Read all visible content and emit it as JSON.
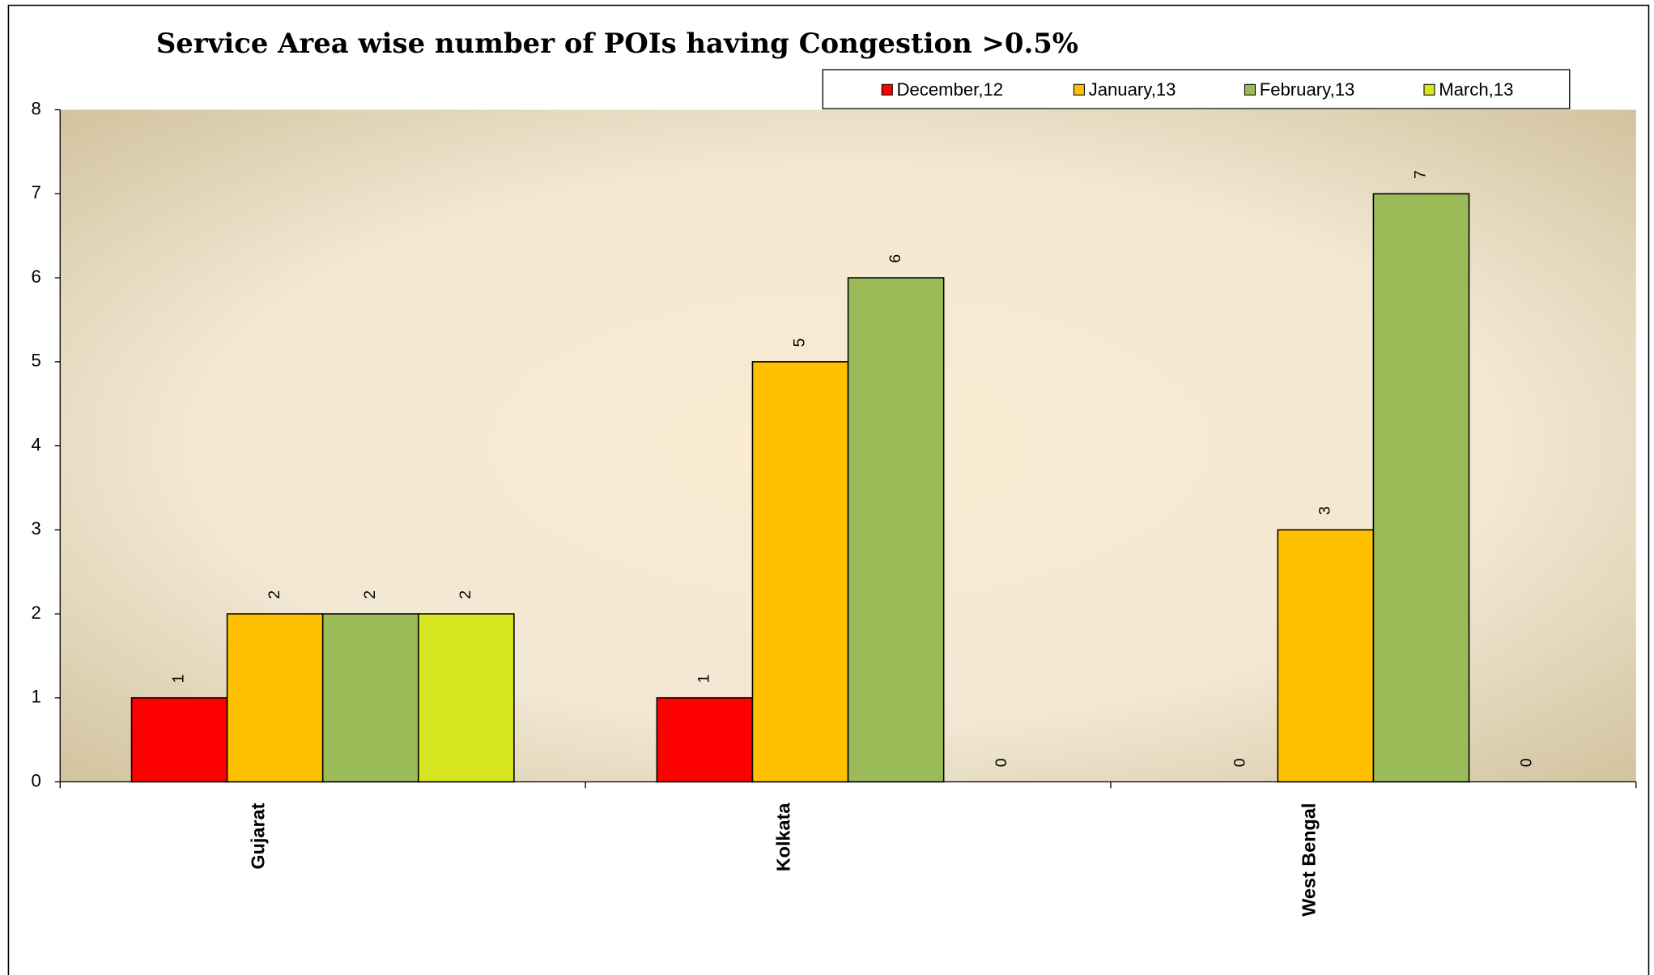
{
  "chart_data": {
    "type": "bar",
    "title": "Service Area wise  number of POIs having Congestion >0.5%",
    "categories": [
      "Gujarat",
      "Kolkata",
      "West Bengal"
    ],
    "series": [
      {
        "name": "December,12",
        "color": "#ff0000",
        "values": [
          1,
          1,
          0
        ]
      },
      {
        "name": "January,13",
        "color": "#ffc000",
        "values": [
          2,
          5,
          3
        ]
      },
      {
        "name": "February,13",
        "color": "#9bbb59",
        "values": [
          2,
          6,
          7
        ]
      },
      {
        "name": "March,13",
        "color": "#d6e722",
        "values": [
          2,
          0,
          0
        ]
      }
    ],
    "ylim": [
      0,
      8
    ],
    "yticks": [
      0,
      1,
      2,
      3,
      4,
      5,
      6,
      7,
      8
    ],
    "legend": "top-right"
  }
}
